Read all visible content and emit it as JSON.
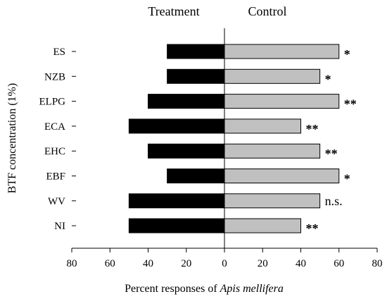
{
  "chart_data": {
    "type": "bar",
    "orientation": "horizontal-diverging",
    "categories": [
      "ES",
      "NZB",
      "ELPG",
      "ECA",
      "EHC",
      "EBF",
      "WV",
      "NI"
    ],
    "series": [
      {
        "name": "Treatment",
        "color": "#000000",
        "values": [
          30,
          30,
          40,
          50,
          40,
          30,
          50,
          50
        ]
      },
      {
        "name": "Control",
        "color": "#c0c0c0",
        "values": [
          60,
          50,
          60,
          40,
          50,
          60,
          50,
          40
        ]
      }
    ],
    "significance": [
      "*",
      "*",
      "**",
      "**",
      "**",
      "*",
      "n.s.",
      "**"
    ],
    "header_left": "Treatment",
    "header_right": "Control",
    "ylabel": "BTF concentration  (1%)",
    "xlabel_prefix": "Percent responses of ",
    "xlabel_species": "Apis mellifera",
    "xlim": [
      -80,
      80
    ],
    "x_ticks": [
      -80,
      -60,
      -40,
      -20,
      0,
      20,
      40,
      60,
      80
    ],
    "x_tick_labels": [
      "80",
      "60",
      "40",
      "20",
      "0",
      "20",
      "40",
      "60",
      "80"
    ],
    "grid": false
  }
}
